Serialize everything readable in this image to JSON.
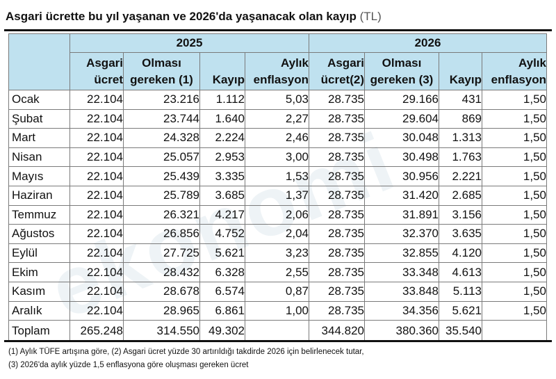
{
  "title": {
    "main": "Asgari ücrette bu yıl yaşanan ve 2026'da yaşanacak olan kayıp",
    "unit": "(TL)"
  },
  "years": [
    "2025",
    "2026"
  ],
  "columns": [
    {
      "line1": "Asgari",
      "line2": "ücret"
    },
    {
      "line1": "Olması",
      "line2": "gereken (1)"
    },
    {
      "line1": "",
      "line2": "Kayıp"
    },
    {
      "line1": "Aylık",
      "line2": "enflasyon"
    },
    {
      "line1": "Asgari",
      "line2": "ücret(2)"
    },
    {
      "line1": "Olması",
      "line2": "gereken (3)"
    },
    {
      "line1": "",
      "line2": "Kayıp"
    },
    {
      "line1": "Aylık",
      "line2": "enflasyon"
    }
  ],
  "rows": [
    [
      "Ocak",
      "22.104",
      "23.216",
      "1.112",
      "5,03",
      "28.735",
      "29.166",
      "431",
      "1,50"
    ],
    [
      "Şubat",
      "22.104",
      "23.744",
      "1.640",
      "2,27",
      "28.735",
      "29.604",
      "869",
      "1,50"
    ],
    [
      "Mart",
      "22.104",
      "24.328",
      "2.224",
      "2,46",
      "28.735",
      "30.048",
      "1.313",
      "1,50"
    ],
    [
      "Nisan",
      "22.104",
      "25.057",
      "2.953",
      "3,00",
      "28.735",
      "30.498",
      "1.763",
      "1,50"
    ],
    [
      "Mayıs",
      "22.104",
      "25.439",
      "3.335",
      "1,53",
      "28.735",
      "30.956",
      "2.221",
      "1,50"
    ],
    [
      "Haziran",
      "22.104",
      "25.789",
      "3.685",
      "1,37",
      "28.735",
      "31.420",
      "2.685",
      "1,50"
    ],
    [
      "Temmuz",
      "22.104",
      "26.321",
      "4.217",
      "2,06",
      "28.735",
      "31.891",
      "3.156",
      "1,50"
    ],
    [
      "Ağustos",
      "22.104",
      "26.856",
      "4.752",
      "2,04",
      "28.735",
      "32.370",
      "3.635",
      "1,50"
    ],
    [
      "Eylül",
      "22.104",
      "27.725",
      "5.621",
      "3,23",
      "28.735",
      "32.855",
      "4.120",
      "1,50"
    ],
    [
      "Ekim",
      "22.104",
      "28.432",
      "6.328",
      "2,55",
      "28.735",
      "33.348",
      "4.613",
      "1,50"
    ],
    [
      "Kasım",
      "22.104",
      "28.678",
      "6.574",
      "0,87",
      "28.735",
      "33.848",
      "5.113",
      "1,50"
    ],
    [
      "Aralık",
      "22.104",
      "28.965",
      "6.861",
      "1,00",
      "28.735",
      "34.356",
      "5.621",
      "1,50"
    ]
  ],
  "total": [
    "Toplam",
    "265.248",
    "314.550",
    "49.302",
    "",
    "344.820",
    "380.360",
    "35.540",
    ""
  ],
  "notes": [
    "(1) Aylık TÜFE artışına göre, (2) Asgari ücret yüzde 30 artırıldığı takdirde 2026 için belirlenecek tutar,",
    "(3) 2026'da aylık yüzde 1,5 enflasyona göre oluşması gereken ücret"
  ],
  "watermark": "ekonomi",
  "colors": {
    "header_bg": "#bfe1ef",
    "border": "#7a7a7a",
    "rule": "#111111"
  }
}
